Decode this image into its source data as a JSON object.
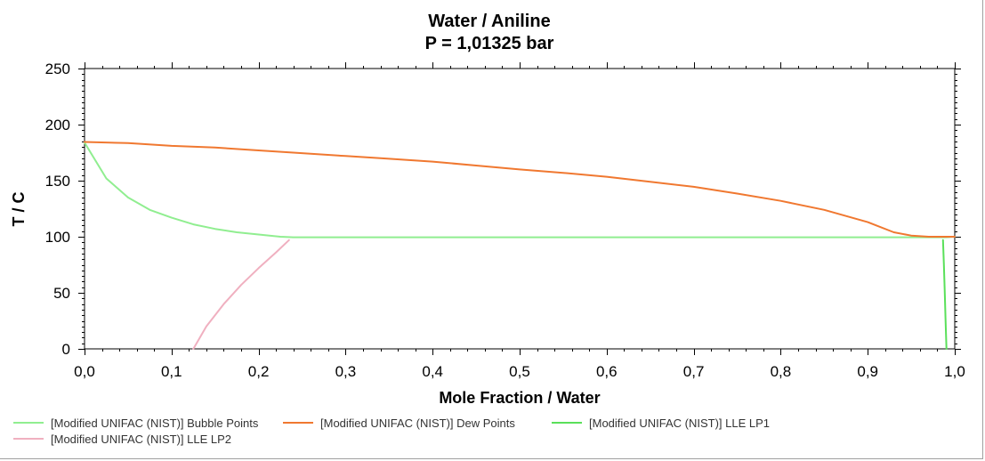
{
  "chart_data": {
    "type": "line",
    "title": "Water / Aniline",
    "subtitle": "P = 1,01325 bar",
    "xlabel": "Mole Fraction / Water",
    "ylabel": "T / C",
    "xlim": [
      0,
      1
    ],
    "ylim": [
      0,
      250
    ],
    "x_ticks": [
      "0,0",
      "0,1",
      "0,2",
      "0,3",
      "0,4",
      "0,5",
      "0,6",
      "0,7",
      "0,8",
      "0,9",
      "1,0"
    ],
    "y_ticks": [
      "0",
      "50",
      "100",
      "150",
      "200",
      "250"
    ],
    "grid": false,
    "legend_position": "bottom",
    "series": [
      {
        "name": "[Modified UNIFAC (NIST)] Bubble Points",
        "color": "#90ee90",
        "x": [
          0.0,
          0.025,
          0.05,
          0.075,
          0.1,
          0.125,
          0.15,
          0.175,
          0.2,
          0.225,
          0.24,
          0.3,
          0.4,
          0.5,
          0.6,
          0.7,
          0.8,
          0.9,
          0.95,
          0.99,
          1.0
        ],
        "y": [
          184,
          152,
          135,
          124,
          117,
          111,
          107,
          104,
          102,
          100,
          99.5,
          99.5,
          99.5,
          99.5,
          99.5,
          99.5,
          99.5,
          99.5,
          99.5,
          99.5,
          100
        ]
      },
      {
        "name": "[Modified UNIFAC (NIST)] Dew Points",
        "color": "#f07830",
        "x": [
          0.0,
          0.05,
          0.1,
          0.15,
          0.2,
          0.25,
          0.3,
          0.35,
          0.4,
          0.45,
          0.5,
          0.55,
          0.6,
          0.65,
          0.7,
          0.75,
          0.8,
          0.85,
          0.9,
          0.93,
          0.95,
          0.97,
          0.99,
          1.0
        ],
        "y": [
          184.5,
          183.5,
          181,
          179.5,
          177,
          174.5,
          172,
          169.5,
          167,
          163.5,
          160,
          157,
          153.5,
          149,
          144.5,
          138.5,
          132,
          124,
          113,
          104,
          101,
          100,
          100,
          100
        ]
      },
      {
        "name": "[Modified UNIFAC (NIST)] LLE LP1",
        "color": "#5ae05a",
        "x": [
          0.9865,
          0.9875,
          0.9885,
          0.9895,
          0.9905
        ],
        "y": [
          97,
          75,
          50,
          25,
          0
        ]
      },
      {
        "name": "[Modified UNIFAC (NIST)] LLE LP2",
        "color": "#f0b0c0",
        "x": [
          0.125,
          0.14,
          0.16,
          0.18,
          0.2,
          0.22,
          0.235
        ],
        "y": [
          0,
          20,
          40,
          57,
          72,
          86,
          97
        ]
      }
    ]
  }
}
